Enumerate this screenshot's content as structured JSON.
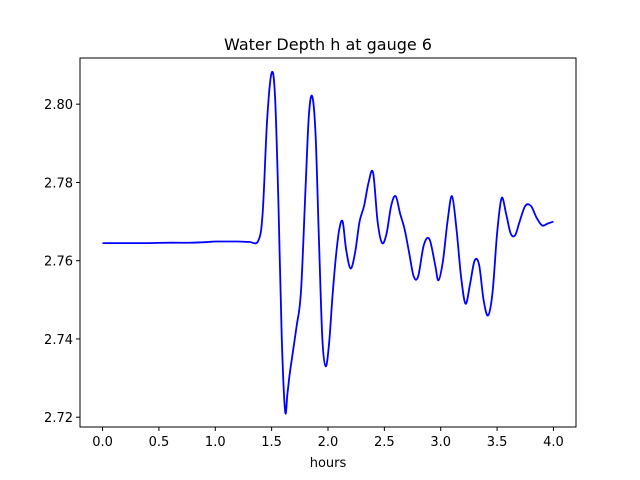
{
  "chart_data": {
    "type": "line",
    "title": "Water Depth h at gauge 6",
    "xlabel": "hours",
    "ylabel": "",
    "xlim": [
      -0.2,
      4.2
    ],
    "ylim": [
      2.7175,
      2.8118
    ],
    "x_ticks": [
      0.0,
      0.5,
      1.0,
      1.5,
      2.0,
      2.5,
      3.0,
      3.5,
      4.0
    ],
    "x_tick_labels": [
      "0.0",
      "0.5",
      "1.0",
      "1.5",
      "2.0",
      "2.5",
      "3.0",
      "3.5",
      "4.0"
    ],
    "y_ticks": [
      2.72,
      2.74,
      2.76,
      2.78,
      2.8
    ],
    "y_tick_labels": [
      "2.72",
      "2.74",
      "2.76",
      "2.78",
      "2.80"
    ],
    "grid": false,
    "legend": "none",
    "series": [
      {
        "color": "#0000ff",
        "x": [
          0.0,
          0.2,
          0.4,
          0.6,
          0.8,
          0.95,
          1.0,
          1.2,
          1.3,
          1.38,
          1.42,
          1.46,
          1.5,
          1.53,
          1.56,
          1.59,
          1.62,
          1.64,
          1.66,
          1.68,
          1.72,
          1.76,
          1.8,
          1.83,
          1.86,
          1.89,
          1.92,
          1.95,
          1.98,
          2.01,
          2.04,
          2.07,
          2.1,
          2.13,
          2.16,
          2.2,
          2.24,
          2.28,
          2.32,
          2.36,
          2.4,
          2.44,
          2.48,
          2.52,
          2.56,
          2.6,
          2.64,
          2.68,
          2.72,
          2.76,
          2.8,
          2.85,
          2.9,
          2.95,
          2.98,
          3.02,
          3.06,
          3.1,
          3.14,
          3.18,
          3.22,
          3.26,
          3.3,
          3.34,
          3.38,
          3.42,
          3.46,
          3.5,
          3.54,
          3.58,
          3.62,
          3.66,
          3.7,
          3.75,
          3.8,
          3.85,
          3.9,
          3.95,
          4.0
        ],
        "y": [
          2.7645,
          2.7645,
          2.7645,
          2.7646,
          2.7646,
          2.7648,
          2.7649,
          2.7649,
          2.7648,
          2.765,
          2.772,
          2.796,
          2.808,
          2.802,
          2.775,
          2.74,
          2.7215,
          2.726,
          2.731,
          2.735,
          2.743,
          2.752,
          2.778,
          2.797,
          2.802,
          2.792,
          2.765,
          2.74,
          2.733,
          2.739,
          2.751,
          2.761,
          2.768,
          2.77,
          2.763,
          2.758,
          2.762,
          2.77,
          2.774,
          2.78,
          2.7825,
          2.77,
          2.7645,
          2.767,
          2.774,
          2.7765,
          2.772,
          2.768,
          2.762,
          2.756,
          2.756,
          2.764,
          2.7655,
          2.759,
          2.755,
          2.76,
          2.77,
          2.7765,
          2.768,
          2.756,
          2.749,
          2.754,
          2.76,
          2.759,
          2.75,
          2.746,
          2.752,
          2.767,
          2.776,
          2.772,
          2.767,
          2.7665,
          2.77,
          2.774,
          2.774,
          2.771,
          2.769,
          2.7695,
          2.77
        ]
      }
    ]
  }
}
